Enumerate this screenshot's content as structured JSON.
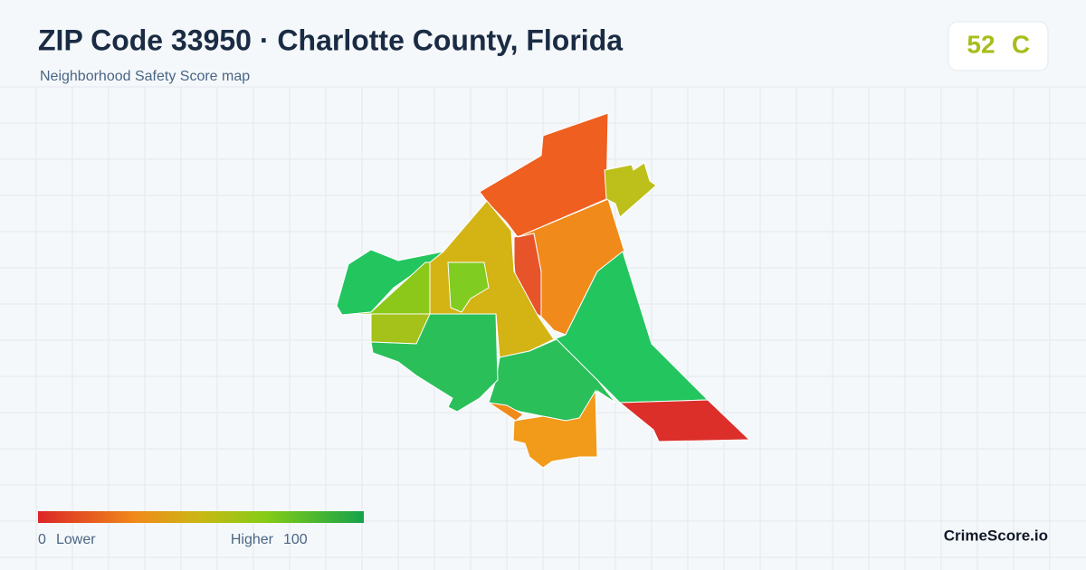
{
  "header": {
    "title": "ZIP Code 33950 · Charlotte County, Florida",
    "subtitle": "Neighborhood Safety Score map"
  },
  "score": {
    "value": "52",
    "grade": "C"
  },
  "legend": {
    "min": "0",
    "min_label": "Lower",
    "max_label": "Higher",
    "max": "100"
  },
  "brand": "CrimeScore.io"
}
